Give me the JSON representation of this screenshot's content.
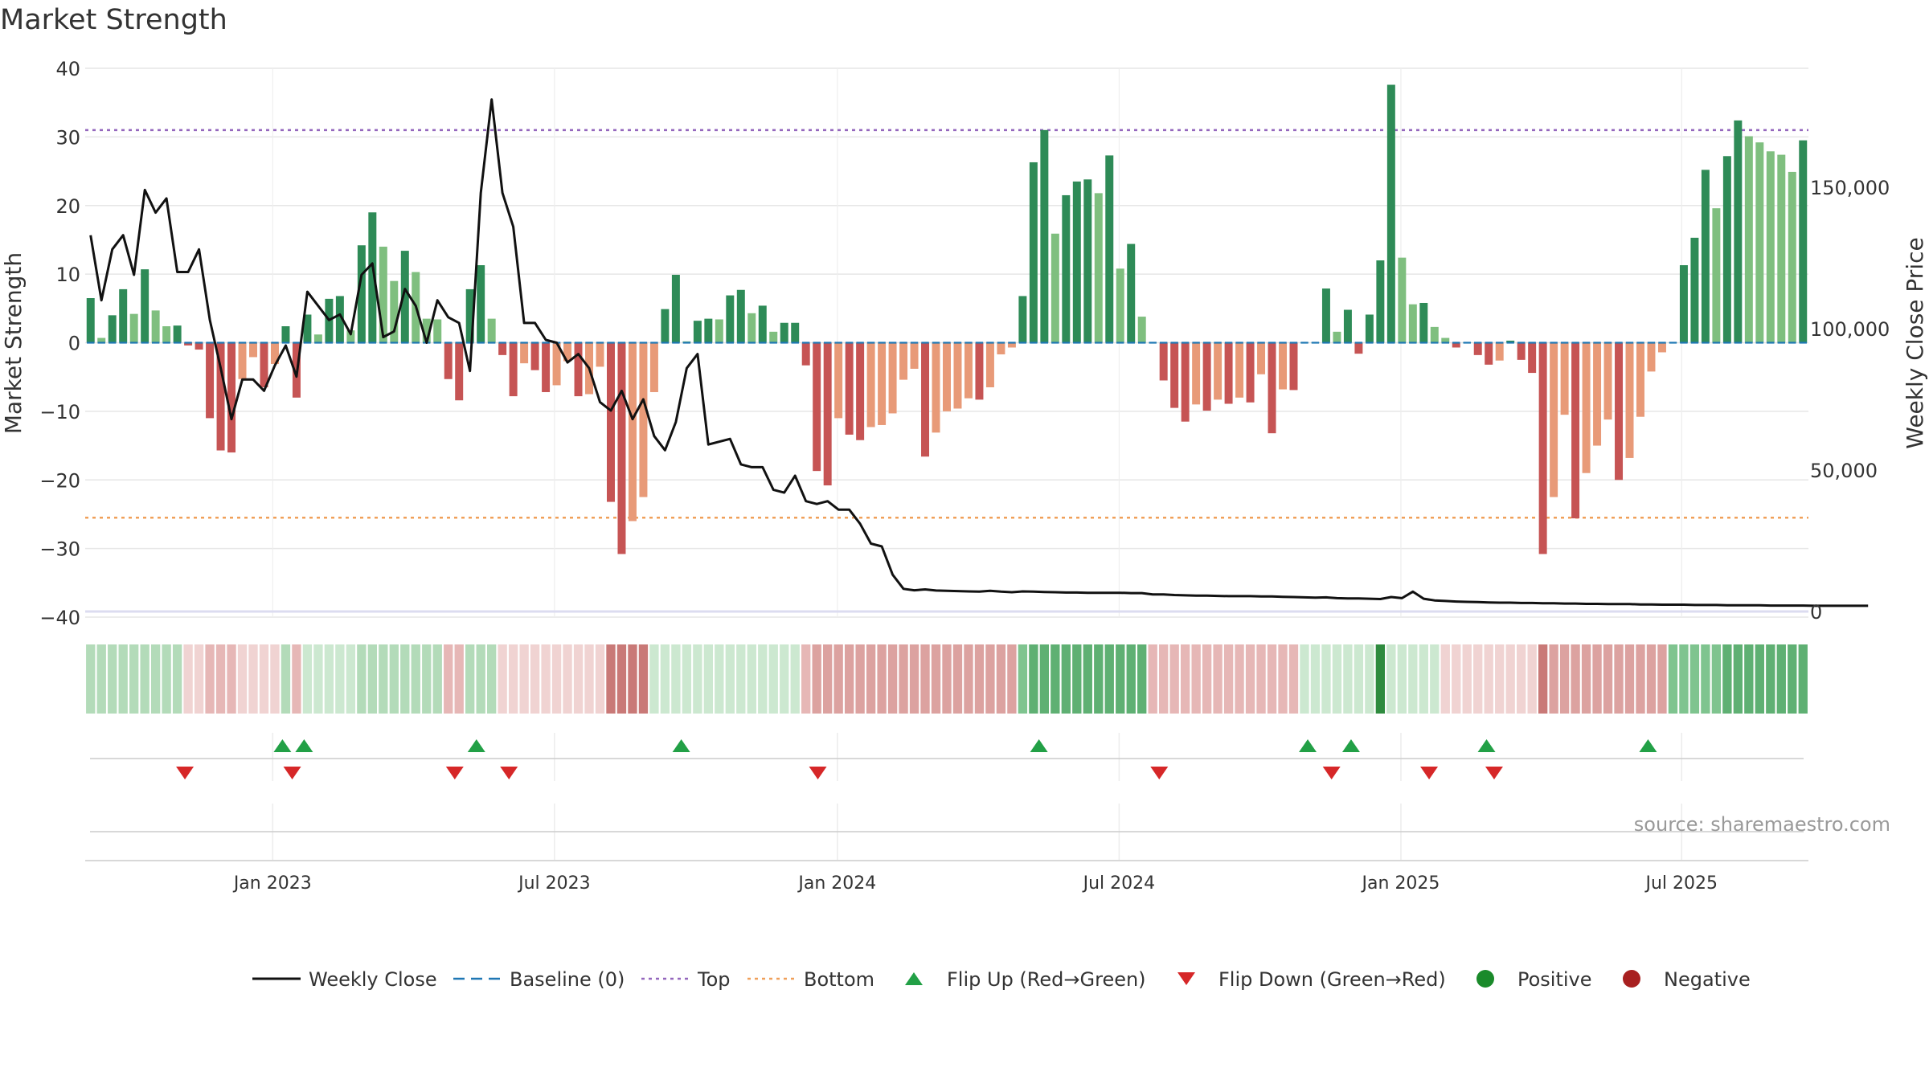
{
  "title": "Market Strength",
  "source": "source: sharemaestro.com",
  "colors": {
    "pos_strong": "#2e8b57",
    "pos_light": "#7fbf7f",
    "neg_strong": "#c65454",
    "neg_light": "#e89a78",
    "close": "#111111",
    "baseline": "#1f77b4",
    "top": "#9467bd",
    "bottom": "#f0a05a",
    "flip_up": "#22a046",
    "flip_down": "#d62728",
    "positive": "#1a8a2a",
    "negative": "#a82020",
    "grid": "#e6e6e6"
  },
  "chart_data": {
    "type": "bar",
    "title": "Market Strength",
    "ylabel": "Market Strength",
    "y2label": "Weekly Close Price",
    "ylim": [
      -40,
      40
    ],
    "y2lim": [
      -2000,
      192000
    ],
    "yticks": [
      "40",
      "30",
      "20",
      "10",
      "0",
      "−10",
      "−20",
      "−30",
      "−40"
    ],
    "y2ticks": [
      "150,000",
      "100,000",
      "50,000",
      "0"
    ],
    "y2tick_values": [
      150000,
      100000,
      50000,
      0
    ],
    "xticks": [
      "Jan 2023",
      "Jul 2023",
      "Jan 2024",
      "Jul 2024",
      "Jan 2025",
      "Jul 2025"
    ],
    "xtick_weeks": [
      17.3,
      43.3,
      69.4,
      95.4,
      121.4,
      147.3
    ],
    "top_line": 31,
    "bottom_line": -25.5,
    "baseline": 0,
    "grid": true,
    "legend_position": "bottom",
    "legend": [
      "Weekly Close",
      "Baseline (0)",
      "Top",
      "Bottom",
      "Flip Up (Red→Green)",
      "Flip Down (Green→Red)",
      "Positive",
      "Negative"
    ],
    "strength": [
      6.5,
      0.7,
      4,
      7.8,
      4.2,
      10.7,
      4.7,
      2.4,
      2.5,
      -0.4,
      -1,
      -11,
      -15.7,
      -16,
      -5.3,
      -2.1,
      -6.5,
      -3.1,
      2.4,
      -8,
      4.1,
      1.2,
      6.4,
      6.8,
      1.8,
      14.2,
      19,
      14,
      9,
      13.4,
      10.3,
      3.5,
      3.4,
      -5.3,
      -8.4,
      7.8,
      11.3,
      3.5,
      -1.8,
      -7.8,
      -3,
      -4,
      -7.2,
      -6.2,
      -2.7,
      -7.8,
      -7.5,
      -3.5,
      -23.2,
      -30.8,
      -26,
      -22.5,
      -7.2,
      4.9,
      9.9,
      0.2,
      3.2,
      3.5,
      3.4,
      6.9,
      7.7,
      4.3,
      5.4,
      1.6,
      2.9,
      2.9,
      -3.3,
      -18.7,
      -20.8,
      -11,
      -13.4,
      -14.2,
      -12.3,
      -12,
      -10.3,
      -5.4,
      -3.8,
      -16.6,
      -13.1,
      -10,
      -9.6,
      -8.1,
      -8.3,
      -6.5,
      -1.7,
      -0.7,
      6.8,
      26.3,
      31,
      15.9,
      21.5,
      23.5,
      23.8,
      21.8,
      27.3,
      10.8,
      14.4,
      3.8,
      0,
      -5.5,
      -9.5,
      -11.5,
      -9,
      -9.9,
      -8.3,
      -8.9,
      -8,
      -8.7,
      -4.6,
      -13.2,
      -6.8,
      -6.9,
      0,
      0,
      7.9,
      1.6,
      4.8,
      -1.6,
      4.1,
      12,
      37.6,
      12.4,
      5.6,
      5.8,
      2.3,
      0.7,
      -0.7,
      0,
      -1.8,
      -3.2,
      -2.6,
      0.3,
      -2.5,
      -4.4,
      -30.8,
      -22.5,
      -10.5,
      -25.6,
      -19,
      -15,
      -11.2,
      -20,
      -16.8,
      -10.8,
      -4.2,
      -1.4,
      0,
      11.3,
      15.3,
      25.2,
      19.6,
      27.2,
      32.4,
      30.1,
      29.2,
      27.9,
      27.4,
      24.9,
      29.5
    ],
    "weekly_close": [
      133000,
      110000,
      128000,
      133000,
      119000,
      149000,
      141000,
      146000,
      120000,
      120000,
      128000,
      103000,
      86000,
      68000,
      82000,
      82000,
      78000,
      87000,
      94000,
      83000,
      113000,
      108000,
      103000,
      105000,
      98000,
      119000,
      123000,
      97000,
      99000,
      114000,
      108000,
      95000,
      110000,
      104000,
      102000,
      85000,
      148000,
      181000,
      148000,
      136000,
      102000,
      102000,
      96000,
      95000,
      88000,
      91000,
      86000,
      74000,
      71000,
      78000,
      68000,
      75000,
      62000,
      57000,
      67000,
      86000,
      91000,
      59000,
      60000,
      61000,
      52000,
      51000,
      51000,
      43000,
      42000,
      48000,
      39000,
      38000,
      39000,
      36000,
      36000,
      31000,
      24000,
      23000,
      13000,
      8000,
      7500,
      7800,
      7400,
      7300,
      7200,
      7100,
      7000,
      7300,
      7000,
      6800,
      7100,
      7000,
      6900,
      6800,
      6700,
      6700,
      6600,
      6600,
      6600,
      6600,
      6500,
      6500,
      6000,
      6000,
      5800,
      5700,
      5600,
      5600,
      5500,
      5400,
      5400,
      5400,
      5300,
      5300,
      5200,
      5100,
      5000,
      4900,
      5000,
      4700,
      4600,
      4600,
      4500,
      4400,
      5100,
      4700,
      7000,
      4500,
      3900,
      3700,
      3500,
      3400,
      3300,
      3200,
      3100,
      3100,
      3000,
      3000,
      2900,
      2900,
      2800,
      2800,
      2700,
      2700,
      2600,
      2600,
      2600,
      2500,
      2500,
      2400,
      2400,
      2400,
      2300,
      2300,
      2300,
      2200,
      2200,
      2200,
      2200,
      2100,
      2100,
      2100,
      2100,
      2000,
      2000,
      2000,
      2000,
      2000,
      2000
    ],
    "flip_up_weeks": [
      18.2,
      20.2,
      36.1,
      55,
      88,
      112.8,
      116.8,
      129.3,
      144.2
    ],
    "flip_down_weeks": [
      9.2,
      19.1,
      34.1,
      39.1,
      67.6,
      99.1,
      115,
      124,
      130
    ],
    "band_class": [
      "p2",
      "p2",
      "p2",
      "p2",
      "p2",
      "p2",
      "p2",
      "p2",
      "p2",
      "n1",
      "n1",
      "n2",
      "n2",
      "n2",
      "n1",
      "n1",
      "n1",
      "n1",
      "p2",
      "n2",
      "p1",
      "p1",
      "p1",
      "p1",
      "p1",
      "p2",
      "p2",
      "p2",
      "p2",
      "p2",
      "p2",
      "p2",
      "p2",
      "n2",
      "n2",
      "p2",
      "p2",
      "p2",
      "n1",
      "n1",
      "n1",
      "n1",
      "n1",
      "n1",
      "n1",
      "n1",
      "n1",
      "n1",
      "n4",
      "n4",
      "n4",
      "n4",
      "p1",
      "p1",
      "p1",
      "p1",
      "p1",
      "p1",
      "p1",
      "p1",
      "p1",
      "p1",
      "p1",
      "p1",
      "p1",
      "p1",
      "n2",
      "n3",
      "n3",
      "n3",
      "n3",
      "n3",
      "n3",
      "n3",
      "n3",
      "n3",
      "n3",
      "n3",
      "n3",
      "n3",
      "n3",
      "n3",
      "n3",
      "n3",
      "n3",
      "n3",
      "p3",
      "p4",
      "p4",
      "p4",
      "p4",
      "p4",
      "p4",
      "p4",
      "p4",
      "p4",
      "p4",
      "p4",
      "n2",
      "n2",
      "n2",
      "n2",
      "n2",
      "n2",
      "n2",
      "n2",
      "n2",
      "n2",
      "n2",
      "n2",
      "n2",
      "n2",
      "p1",
      "p1",
      "p1",
      "p1",
      "p1",
      "p1",
      "p1",
      "p5",
      "p1",
      "p1",
      "p1",
      "p1",
      "p1",
      "n1",
      "n1",
      "n1",
      "n1",
      "n1",
      "n1",
      "n1",
      "n1",
      "n1",
      "n4",
      "n3",
      "n3",
      "n3",
      "n3",
      "n3",
      "n3",
      "n3",
      "n3",
      "n3",
      "n3",
      "n3",
      "p3",
      "p3",
      "p3",
      "p3",
      "p3",
      "p4",
      "p4",
      "p4",
      "p4",
      "p4",
      "p4",
      "p4",
      "p4"
    ],
    "band_colors": {
      "p1": "#cce8d0",
      "p2": "#b3dbb9",
      "p3": "#7fc48f",
      "p4": "#5fb073",
      "p5": "#2e8b3e",
      "n1": "#f0d3d2",
      "n2": "#e6b7b6",
      "n3": "#dca2a0",
      "n4": "#c97977"
    }
  }
}
